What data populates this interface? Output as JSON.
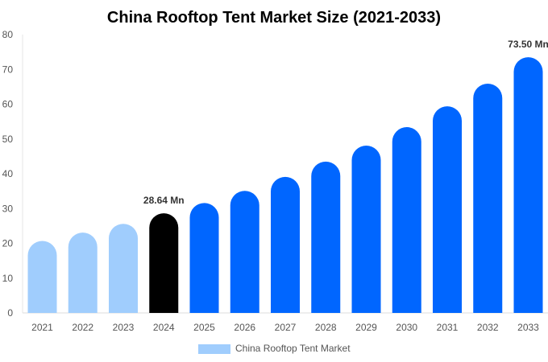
{
  "chart_data": {
    "type": "bar",
    "title": "China Rooftop Tent Market Size (2021-2033)",
    "xlabel": "",
    "ylabel": "",
    "ylim": [
      0,
      80
    ],
    "yticks": [
      "0",
      "10",
      "20",
      "30",
      "40",
      "50",
      "60",
      "70",
      "80"
    ],
    "grid": false,
    "legend_position": "bottom",
    "categories": [
      "2021",
      "2022",
      "2023",
      "2024",
      "2025",
      "2026",
      "2027",
      "2028",
      "2029",
      "2030",
      "2031",
      "2032",
      "2033"
    ],
    "series": [
      {
        "name": "China Rooftop Tent Market",
        "values": [
          20.7,
          23.1,
          25.6,
          28.64,
          31.6,
          35.1,
          39.1,
          43.5,
          48.1,
          53.4,
          59.4,
          65.9,
          73.5
        ],
        "colors": [
          "#a0cdfd",
          "#a0cdfd",
          "#a0cdfd",
          "#000000",
          "#0066ff",
          "#0066ff",
          "#0066ff",
          "#0066ff",
          "#0066ff",
          "#0066ff",
          "#0066ff",
          "#0066ff",
          "#0066ff"
        ]
      }
    ],
    "data_labels": [
      {
        "category": "2024",
        "text": "28.64 Mn"
      },
      {
        "category": "2033",
        "text": "73.50 Mn"
      }
    ],
    "legend_color": "#a0cdfd"
  }
}
